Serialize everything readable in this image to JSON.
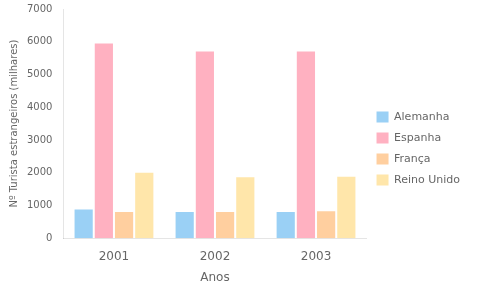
{
  "chart_data": {
    "type": "bar",
    "categories": [
      "2001",
      "2002",
      "2003"
    ],
    "series": [
      {
        "name": "Alemanha",
        "values": [
          880,
          800,
          800
        ]
      },
      {
        "name": "Espanha",
        "values": [
          5950,
          5700,
          5700
        ]
      },
      {
        "name": "França",
        "values": [
          800,
          800,
          820
        ]
      },
      {
        "name": "Reino Unido",
        "values": [
          2000,
          1860,
          1880
        ]
      }
    ],
    "xlabel": "Anos",
    "ylabel": "Nº Turista estrangeiros (milhares)",
    "ylim": [
      0,
      7000
    ],
    "yticks": [
      0,
      1000,
      2000,
      3000,
      4000,
      5000,
      6000,
      7000
    ],
    "grid": false,
    "legend": "right"
  }
}
